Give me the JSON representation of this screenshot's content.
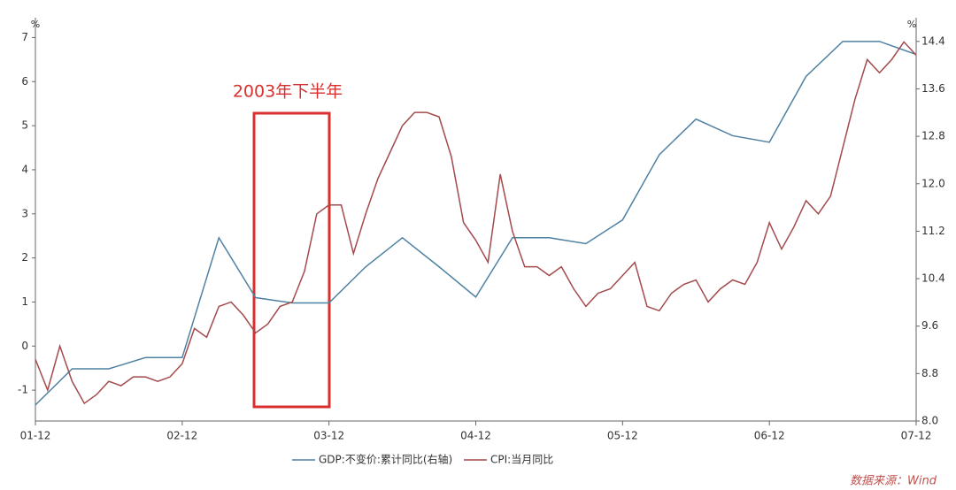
{
  "chart_data": {
    "type": "line",
    "annotations": [
      "2003年下半年"
    ],
    "source": "数据来源：Wind",
    "y_unit": "%",
    "y2_unit": "%",
    "xlim": [
      0,
      72
    ],
    "xticks": [
      {
        "value": 0,
        "label": "01-12"
      },
      {
        "value": 12,
        "label": "02-12"
      },
      {
        "value": 24,
        "label": "03-12"
      },
      {
        "value": 36,
        "label": "04-12"
      },
      {
        "value": 48,
        "label": "05-12"
      },
      {
        "value": 60,
        "label": "06-12"
      },
      {
        "value": 72,
        "label": "07-12"
      }
    ],
    "ylim": [
      -1.7,
      7.45
    ],
    "yticks": [
      -1,
      0,
      1,
      2,
      3,
      4,
      5,
      6,
      7
    ],
    "y2lim": [
      8,
      14.8
    ],
    "y2ticks": [
      {
        "value": 8,
        "label": "8.0"
      },
      8.8,
      9.6,
      10.4,
      11.2,
      {
        "value": 12,
        "label": "12.0"
      },
      12.8,
      13.6,
      14.4
    ],
    "series": [
      {
        "name": "GDP:不变价:累计同比(右轴)",
        "color": "#4f81a3",
        "axis": "y2",
        "x": [
          0,
          3,
          6,
          9,
          12,
          15,
          18,
          21,
          24,
          27,
          30,
          33,
          36,
          39,
          42,
          45,
          48,
          51,
          54,
          57,
          60,
          63,
          66,
          69,
          72
        ],
        "values": [
          8.27,
          8.88,
          8.88,
          9.07,
          9.07,
          11.09,
          10.08,
          9.99,
          9.99,
          10.6,
          11.09,
          10.6,
          10.09,
          11.09,
          11.09,
          10.99,
          11.39,
          12.49,
          13.09,
          12.81,
          12.7,
          13.81,
          14.4,
          14.4,
          14.18
        ]
      },
      {
        "name": "CPI:当月同比",
        "color": "#a34a4c",
        "x": [
          0,
          1,
          2,
          3,
          4,
          5,
          6,
          7,
          8,
          9,
          10,
          11,
          12,
          13,
          14,
          15,
          16,
          17,
          18,
          19,
          20,
          21,
          22,
          23,
          24,
          25,
          26,
          27,
          28,
          29,
          30,
          31,
          32,
          33,
          34,
          35,
          36,
          37,
          38,
          39,
          40,
          41,
          42,
          43,
          44,
          45,
          46,
          47,
          48,
          49,
          50,
          51,
          52,
          53,
          54,
          55,
          56,
          57,
          58,
          59,
          60,
          61,
          62,
          63,
          64,
          65,
          66,
          67,
          68,
          69,
          70,
          71,
          72
        ],
        "values": [
          -0.3,
          -1.0,
          0,
          -0.8,
          -1.3,
          -1.1,
          -0.8,
          -0.9,
          -0.7,
          -0.7,
          -0.8,
          -0.7,
          -0.4,
          0.4,
          0.2,
          0.9,
          1.0,
          0.7,
          0.3,
          0.5,
          0.9,
          1.0,
          1.7,
          3.0,
          3.2,
          3.2,
          2.1,
          3.0,
          3.8,
          4.4,
          5.0,
          5.3,
          5.3,
          5.2,
          4.3,
          2.8,
          2.4,
          1.9,
          3.9,
          2.6,
          1.8,
          1.8,
          1.6,
          1.8,
          1.3,
          0.9,
          1.2,
          1.3,
          1.6,
          1.9,
          0.9,
          0.8,
          1.2,
          1.4,
          1.5,
          1.0,
          1.3,
          1.5,
          1.4,
          1.9,
          2.8,
          2.2,
          2.7,
          3.3,
          3.0,
          3.4,
          4.5,
          5.6,
          6.5,
          6.2,
          6.5,
          6.9,
          6.6
        ]
      }
    ]
  }
}
